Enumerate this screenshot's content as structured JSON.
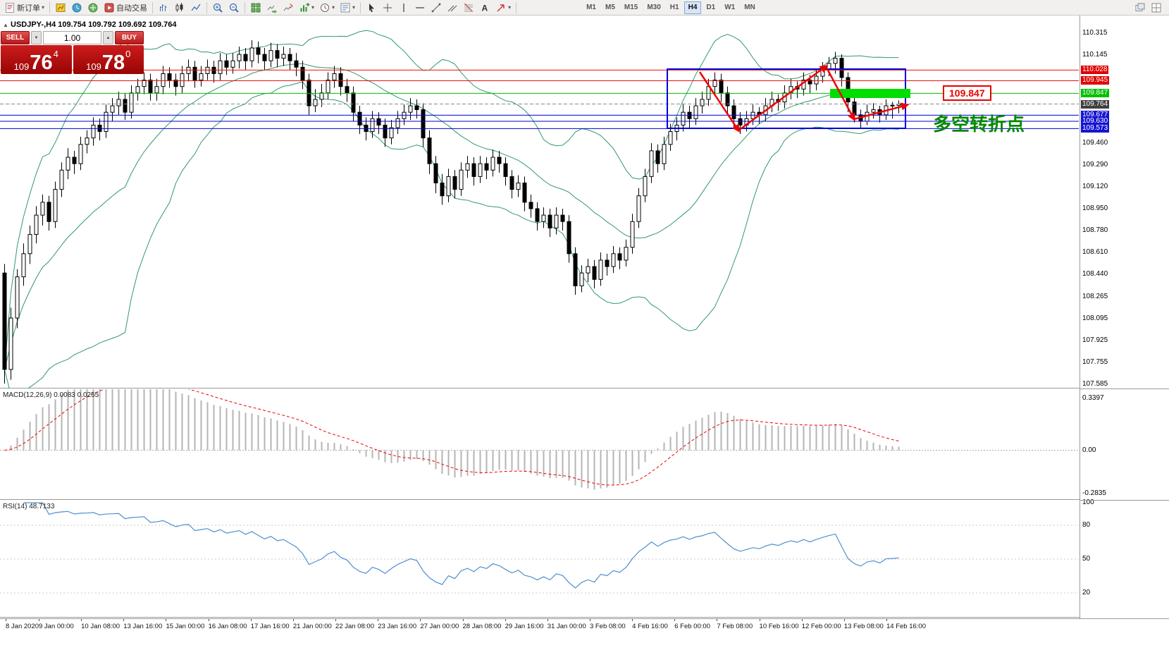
{
  "toolbar": {
    "items": [
      {
        "name": "new-order-button",
        "icon": "new-order",
        "label": "新订单",
        "caret": true
      },
      {
        "sep": true
      },
      {
        "name": "profiles-button",
        "icon": "profile"
      },
      {
        "name": "market-watch-button",
        "icon": "market-watch"
      },
      {
        "name": "navigator-button",
        "icon": "navigator"
      },
      {
        "name": "auto-trading-button",
        "icon": "auto-trading",
        "label": "自动交易"
      },
      {
        "sep": true
      },
      {
        "name": "bar-chart-button",
        "icon": "bar-chart"
      },
      {
        "name": "candlestick-chart-button",
        "icon": "candle-chart"
      },
      {
        "name": "line-chart-button",
        "icon": "line-chart"
      },
      {
        "sep": true
      },
      {
        "name": "zoom-in-button",
        "icon": "zoom-in"
      },
      {
        "name": "zoom-out-button",
        "icon": "zoom-out"
      },
      {
        "sep": true
      },
      {
        "name": "tile-windows-button",
        "icon": "tile-windows"
      },
      {
        "name": "auto-scroll-button",
        "icon": "auto-scroll"
      },
      {
        "name": "chart-shift-button",
        "icon": "chart-shift"
      },
      {
        "name": "indicators-button",
        "icon": "indicators",
        "caret": true
      },
      {
        "name": "periods-button",
        "icon": "periods",
        "caret": true
      },
      {
        "name": "templates-button",
        "icon": "templates",
        "caret": true
      },
      {
        "sep": true
      },
      {
        "name": "cursor-button",
        "icon": "cursor"
      },
      {
        "name": "crosshair-button",
        "icon": "crosshair"
      },
      {
        "name": "vertical-line-button",
        "icon": "vline"
      },
      {
        "name": "horizontal-line-button",
        "icon": "hline"
      },
      {
        "name": "trendline-button",
        "icon": "trendline"
      },
      {
        "name": "equidistant-channel-button",
        "icon": "channel"
      },
      {
        "name": "fibonacci-button",
        "icon": "fibonacci"
      },
      {
        "name": "text-label-button",
        "icon": "text"
      },
      {
        "name": "arrows-button",
        "icon": "arrows",
        "caret": true
      },
      {
        "sep": true
      }
    ],
    "timeframes": [
      {
        "label": "M1"
      },
      {
        "label": "M5"
      },
      {
        "label": "M15"
      },
      {
        "label": "M30"
      },
      {
        "label": "H1"
      },
      {
        "label": "H4",
        "active": true
      },
      {
        "label": "D1"
      },
      {
        "label": "W1"
      },
      {
        "label": "MN"
      }
    ],
    "right_items": [
      {
        "name": "new-chart-window-button",
        "icon": "cascade"
      },
      {
        "name": "window-list-button",
        "icon": "tile2"
      }
    ]
  },
  "chart": {
    "symbol_info": "USDJPY-,H4 109.754 109.792 109.692 109.764",
    "collapse_glyph": "▲",
    "annotation_price": "109.847",
    "annotation_text": "多空转折点"
  },
  "trade_panel": {
    "sell_label": "SELL",
    "buy_label": "BUY",
    "volume": "1.00",
    "down_glyph": "▼",
    "up_glyph": "▲",
    "sell_price_prefix": "109",
    "sell_price_big": "76",
    "sell_price_sup": "4",
    "buy_price_prefix": "109",
    "buy_price_big": "78",
    "buy_price_sup": "0"
  },
  "price_scale": [
    {
      "text": "110.315"
    },
    {
      "text": "110.145"
    },
    {
      "text": "110.028",
      "style": "red"
    },
    {
      "text": "109.945",
      "style": "red"
    },
    {
      "text": "109.847",
      "style": "green"
    },
    {
      "text": "109.764",
      "style": "current"
    },
    {
      "text": "109.677",
      "style": "blue"
    },
    {
      "text": "109.630",
      "style": "blue"
    },
    {
      "text": "109.573",
      "style": "blue"
    },
    {
      "text": "109.460"
    },
    {
      "text": "109.290"
    },
    {
      "text": "109.120"
    },
    {
      "text": "108.950"
    },
    {
      "text": "108.780"
    },
    {
      "text": "108.610"
    },
    {
      "text": "108.440"
    },
    {
      "text": "108.265"
    },
    {
      "text": "108.095"
    },
    {
      "text": "107.925"
    },
    {
      "text": "107.755"
    },
    {
      "text": "107.585"
    }
  ],
  "macd": {
    "label": "MACD(12,26,9) 0.0083 0.0255",
    "scale": [
      "0.3397",
      "0.00",
      "-0.2835"
    ]
  },
  "rsi": {
    "label": "RSI(14) 48.7133",
    "scale": [
      "100",
      "80",
      "50",
      "20"
    ]
  },
  "time_axis": [
    "8 Jan 2020",
    "9 Jan 00:00",
    "10 Jan 08:00",
    "13 Jan 16:00",
    "15 Jan 00:00",
    "16 Jan 08:00",
    "17 Jan 16:00",
    "21 Jan 00:00",
    "22 Jan 08:00",
    "23 Jan 16:00",
    "27 Jan 00:00",
    "28 Jan 08:00",
    "29 Jan 16:00",
    "31 Jan 00:00",
    "3 Feb 08:00",
    "4 Feb 16:00",
    "6 Feb 00:00",
    "7 Feb 08:00",
    "10 Feb 16:00",
    "12 Feb 00:00",
    "13 Feb 08:00",
    "14 Feb 16:00"
  ],
  "chart_data": {
    "type": "candlestick",
    "symbol": "USDJPY-",
    "timeframe": "H4",
    "ylim": [
      107.585,
      110.315
    ],
    "levels": [
      {
        "price": 110.028,
        "color": "#ee1111",
        "style": "solid"
      },
      {
        "price": 109.945,
        "color": "#ee1111",
        "style": "solid"
      },
      {
        "price": 109.847,
        "color": "#00bb00",
        "style": "solid"
      },
      {
        "price": 109.764,
        "color": "#888888",
        "style": "dash"
      },
      {
        "price": 109.677,
        "color": "#0000dd",
        "style": "solid"
      },
      {
        "price": 109.63,
        "color": "#0000dd",
        "style": "solid"
      },
      {
        "price": 109.573,
        "color": "#0000dd",
        "style": "solid"
      }
    ],
    "indicators": [
      {
        "name": "Bollinger Bands",
        "period": 20,
        "deviation": 2,
        "color": "#339966"
      },
      {
        "name": "MACD",
        "fast": 12,
        "slow": 26,
        "signal": 9,
        "value": 0.0083,
        "signal_value": 0.0255
      },
      {
        "name": "RSI",
        "period": 14,
        "value": 48.7133,
        "levels": [
          80,
          50,
          20
        ]
      }
    ],
    "ohlc": [
      [
        108.45,
        108.52,
        107.59,
        107.7
      ],
      [
        107.7,
        108.18,
        107.62,
        108.1
      ],
      [
        108.1,
        108.48,
        108.02,
        108.42
      ],
      [
        108.42,
        108.68,
        108.35,
        108.6
      ],
      [
        108.6,
        108.82,
        108.52,
        108.75
      ],
      [
        108.75,
        108.97,
        108.68,
        108.9
      ],
      [
        108.9,
        109.06,
        108.82,
        109.0
      ],
      [
        109.0,
        109.05,
        108.78,
        108.85
      ],
      [
        108.85,
        109.16,
        108.8,
        109.1
      ],
      [
        109.1,
        109.31,
        109.04,
        109.25
      ],
      [
        109.25,
        109.42,
        109.18,
        109.35
      ],
      [
        109.35,
        109.4,
        109.22,
        109.3
      ],
      [
        109.3,
        109.51,
        109.25,
        109.45
      ],
      [
        109.45,
        109.56,
        109.38,
        109.5
      ],
      [
        109.5,
        109.66,
        109.44,
        109.6
      ],
      [
        109.6,
        109.65,
        109.48,
        109.55
      ],
      [
        109.55,
        109.76,
        109.5,
        109.7
      ],
      [
        109.7,
        109.81,
        109.63,
        109.75
      ],
      [
        109.75,
        109.86,
        109.68,
        109.8
      ],
      [
        109.8,
        109.85,
        109.64,
        109.7
      ],
      [
        109.7,
        109.91,
        109.65,
        109.85
      ],
      [
        109.85,
        109.96,
        109.79,
        109.9
      ],
      [
        109.9,
        110.01,
        109.84,
        109.95
      ],
      [
        109.95,
        110.0,
        109.79,
        109.85
      ],
      [
        109.85,
        109.96,
        109.79,
        109.9
      ],
      [
        109.9,
        110.06,
        109.84,
        110.0
      ],
      [
        110.0,
        110.05,
        109.89,
        109.95
      ],
      [
        109.95,
        110.0,
        109.83,
        109.9
      ],
      [
        109.9,
        110.06,
        109.85,
        110.0
      ],
      [
        110.0,
        110.11,
        109.94,
        110.05
      ],
      [
        110.05,
        110.1,
        109.89,
        109.95
      ],
      [
        109.95,
        110.06,
        109.9,
        110.0
      ],
      [
        110.0,
        110.11,
        109.95,
        110.05
      ],
      [
        110.05,
        110.1,
        109.93,
        110.0
      ],
      [
        110.0,
        110.16,
        109.95,
        110.1
      ],
      [
        110.1,
        110.15,
        109.99,
        110.05
      ],
      [
        110.05,
        110.16,
        110.0,
        110.1
      ],
      [
        110.1,
        110.21,
        110.04,
        110.15
      ],
      [
        110.15,
        110.2,
        110.03,
        110.1
      ],
      [
        110.1,
        110.26,
        110.05,
        110.2
      ],
      [
        110.2,
        110.25,
        110.08,
        110.15
      ],
      [
        110.15,
        110.2,
        110.03,
        110.1
      ],
      [
        110.1,
        110.24,
        110.05,
        110.18
      ],
      [
        110.18,
        110.23,
        110.05,
        110.12
      ],
      [
        110.12,
        110.21,
        110.06,
        110.15
      ],
      [
        110.15,
        110.2,
        110.03,
        110.1
      ],
      [
        110.1,
        110.16,
        109.98,
        110.05
      ],
      [
        110.05,
        110.1,
        109.88,
        109.95
      ],
      [
        109.95,
        110.0,
        109.68,
        109.75
      ],
      [
        109.75,
        109.88,
        109.7,
        109.8
      ],
      [
        109.8,
        109.92,
        109.74,
        109.85
      ],
      [
        109.85,
        110.01,
        109.8,
        109.95
      ],
      [
        109.95,
        110.06,
        109.89,
        110.0
      ],
      [
        110.0,
        110.05,
        109.83,
        109.9
      ],
      [
        109.9,
        109.96,
        109.78,
        109.85
      ],
      [
        109.85,
        109.9,
        109.63,
        109.7
      ],
      [
        109.7,
        109.75,
        109.53,
        109.6
      ],
      [
        109.6,
        109.66,
        109.48,
        109.55
      ],
      [
        109.55,
        109.71,
        109.5,
        109.65
      ],
      [
        109.65,
        109.7,
        109.53,
        109.6
      ],
      [
        109.6,
        109.65,
        109.43,
        109.5
      ],
      [
        109.5,
        109.64,
        109.45,
        109.58
      ],
      [
        109.58,
        109.71,
        109.53,
        109.65
      ],
      [
        109.65,
        109.76,
        109.6,
        109.7
      ],
      [
        109.7,
        109.81,
        109.64,
        109.75
      ],
      [
        109.75,
        109.8,
        109.65,
        109.72
      ],
      [
        109.72,
        109.77,
        109.43,
        109.5
      ],
      [
        109.5,
        109.56,
        109.22,
        109.3
      ],
      [
        109.3,
        109.36,
        109.07,
        109.15
      ],
      [
        109.15,
        109.22,
        108.98,
        109.05
      ],
      [
        109.05,
        109.26,
        109.0,
        109.2
      ],
      [
        109.2,
        109.25,
        109.03,
        109.1
      ],
      [
        109.1,
        109.31,
        109.05,
        109.25
      ],
      [
        109.25,
        109.36,
        109.19,
        109.3
      ],
      [
        109.3,
        109.35,
        109.13,
        109.2
      ],
      [
        109.2,
        109.36,
        109.15,
        109.3
      ],
      [
        109.3,
        109.35,
        109.18,
        109.25
      ],
      [
        109.25,
        109.41,
        109.2,
        109.35
      ],
      [
        109.35,
        109.4,
        109.23,
        109.3
      ],
      [
        109.3,
        109.35,
        109.13,
        109.2
      ],
      [
        109.2,
        109.25,
        109.03,
        109.1
      ],
      [
        109.1,
        109.21,
        109.04,
        109.15
      ],
      [
        109.15,
        109.2,
        108.93,
        109.0
      ],
      [
        109.0,
        109.06,
        108.88,
        108.95
      ],
      [
        108.95,
        109.0,
        108.78,
        108.85
      ],
      [
        108.85,
        108.96,
        108.8,
        108.9
      ],
      [
        108.9,
        108.95,
        108.73,
        108.8
      ],
      [
        108.8,
        108.96,
        108.75,
        108.9
      ],
      [
        108.9,
        108.95,
        108.78,
        108.85
      ],
      [
        108.85,
        108.9,
        108.53,
        108.6
      ],
      [
        108.6,
        108.65,
        108.28,
        108.35
      ],
      [
        108.35,
        108.51,
        108.3,
        108.45
      ],
      [
        108.45,
        108.56,
        108.38,
        108.5
      ],
      [
        108.5,
        108.55,
        108.33,
        108.4
      ],
      [
        108.4,
        108.61,
        108.35,
        108.55
      ],
      [
        108.55,
        108.6,
        108.43,
        108.5
      ],
      [
        108.5,
        108.66,
        108.45,
        108.6
      ],
      [
        108.6,
        108.65,
        108.48,
        108.55
      ],
      [
        108.55,
        108.71,
        108.5,
        108.65
      ],
      [
        108.65,
        108.91,
        108.6,
        108.85
      ],
      [
        108.85,
        109.11,
        108.8,
        109.05
      ],
      [
        109.05,
        109.26,
        109.0,
        109.2
      ],
      [
        109.2,
        109.46,
        109.15,
        109.4
      ],
      [
        109.4,
        109.45,
        109.23,
        109.3
      ],
      [
        109.3,
        109.51,
        109.25,
        109.45
      ],
      [
        109.45,
        109.61,
        109.4,
        109.55
      ],
      [
        109.55,
        109.66,
        109.48,
        109.6
      ],
      [
        109.6,
        109.76,
        109.55,
        109.7
      ],
      [
        109.7,
        109.75,
        109.58,
        109.65
      ],
      [
        109.65,
        109.81,
        109.6,
        109.75
      ],
      [
        109.75,
        109.86,
        109.69,
        109.8
      ],
      [
        109.8,
        109.96,
        109.75,
        109.9
      ],
      [
        109.9,
        110.01,
        109.84,
        109.95
      ],
      [
        109.95,
        110.0,
        109.78,
        109.85
      ],
      [
        109.85,
        109.9,
        109.68,
        109.75
      ],
      [
        109.75,
        109.8,
        109.58,
        109.65
      ],
      [
        109.65,
        109.7,
        109.53,
        109.6
      ],
      [
        109.6,
        109.71,
        109.55,
        109.65
      ],
      [
        109.65,
        109.76,
        109.6,
        109.7
      ],
      [
        109.7,
        109.74,
        109.61,
        109.68
      ],
      [
        109.68,
        109.81,
        109.63,
        109.75
      ],
      [
        109.75,
        109.86,
        109.7,
        109.8
      ],
      [
        109.8,
        109.84,
        109.71,
        109.78
      ],
      [
        109.78,
        109.91,
        109.73,
        109.85
      ],
      [
        109.85,
        109.96,
        109.8,
        109.9
      ],
      [
        109.9,
        109.94,
        109.81,
        109.88
      ],
      [
        109.88,
        110.01,
        109.83,
        109.95
      ],
      [
        109.95,
        109.99,
        109.85,
        109.92
      ],
      [
        109.92,
        110.04,
        109.87,
        109.98
      ],
      [
        109.98,
        110.09,
        109.93,
        110.03
      ],
      [
        110.03,
        110.13,
        109.98,
        110.08
      ],
      [
        110.08,
        110.17,
        110.0,
        110.12
      ],
      [
        110.12,
        110.15,
        109.9,
        109.97
      ],
      [
        109.97,
        110.01,
        109.7,
        109.78
      ],
      [
        109.78,
        109.84,
        109.62,
        109.68
      ],
      [
        109.68,
        109.72,
        109.57,
        109.63
      ],
      [
        109.63,
        109.76,
        109.6,
        109.7
      ],
      [
        109.7,
        109.77,
        109.65,
        109.72
      ],
      [
        109.72,
        109.75,
        109.62,
        109.68
      ],
      [
        109.68,
        109.8,
        109.64,
        109.75
      ],
      [
        109.75,
        109.78,
        109.65,
        109.754
      ],
      [
        109.754,
        109.792,
        109.692,
        109.764
      ]
    ]
  }
}
